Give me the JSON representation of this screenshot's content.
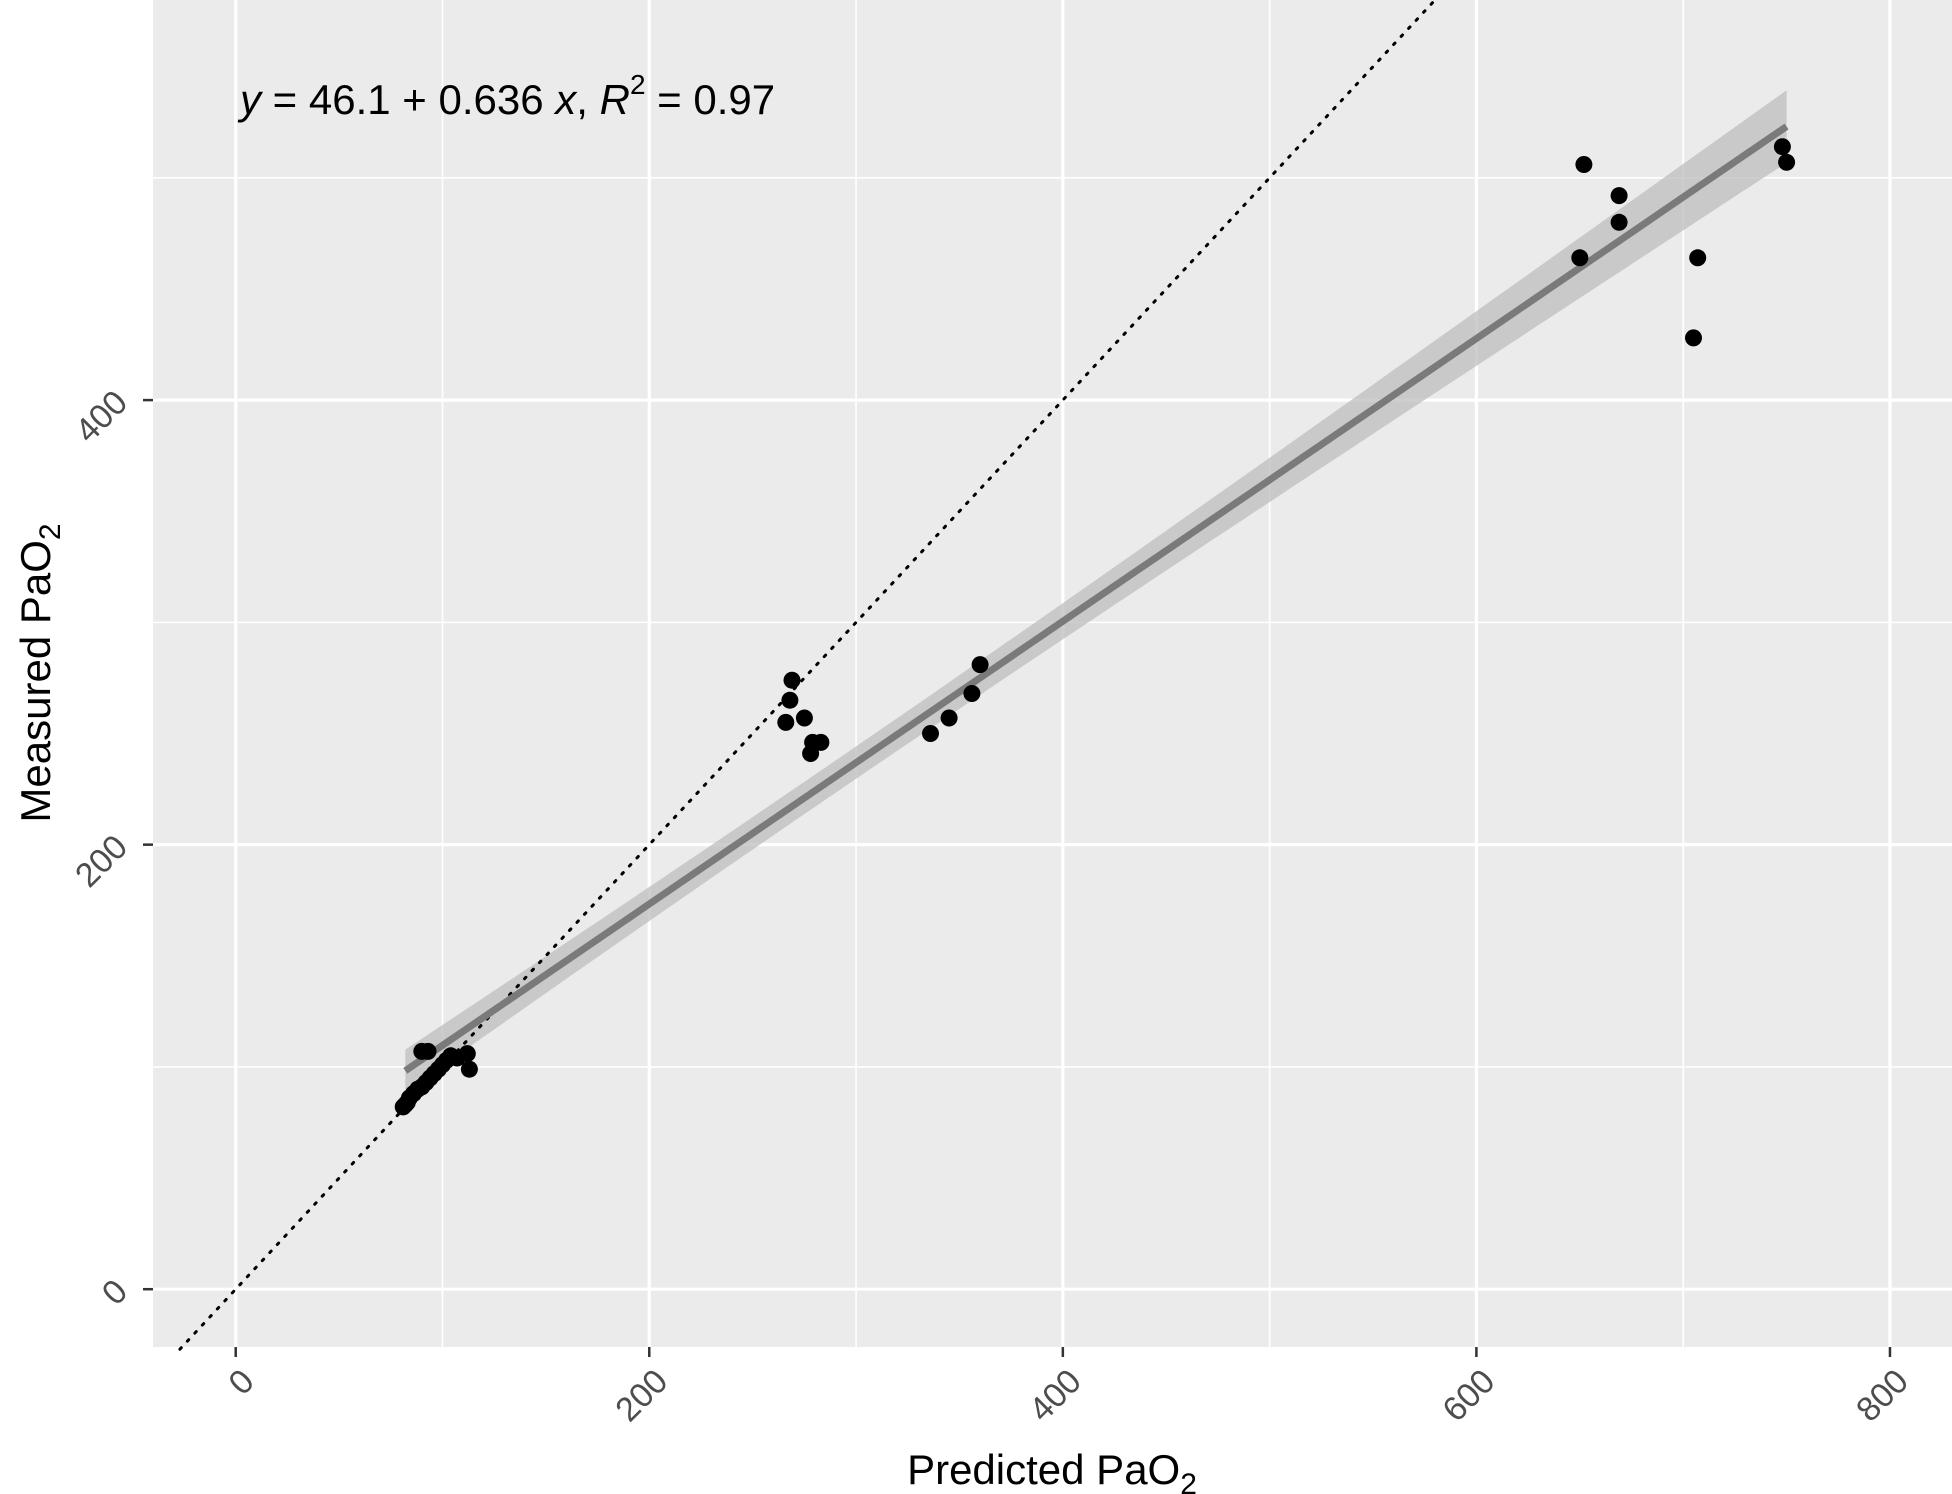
{
  "chart_data": {
    "type": "scatter",
    "title": "",
    "xlabel": "Predicted PaO",
    "xlabel_sub": "2",
    "ylabel": "Measured PaO",
    "ylabel_sub": "2",
    "xlim": [
      -40,
      830
    ],
    "ylim": [
      -26,
      580
    ],
    "x_ticks": [
      0,
      200,
      400,
      600,
      800
    ],
    "y_ticks": [
      0,
      200,
      400
    ],
    "x_tick_labels": [
      "0",
      "200",
      "400",
      "600",
      "800"
    ],
    "y_tick_labels": [
      "0",
      "200",
      "400"
    ],
    "grid": true,
    "annotation": {
      "y_var": "y",
      "eq_mid": " = 46.1 + 0.636 ",
      "x_var": "x",
      "sep": ", ",
      "r_var": "R",
      "r_sup": "2",
      "r_val": " = 0.97"
    },
    "identity_line": {
      "slope": 1,
      "intercept": 0,
      "style": "dotted"
    },
    "regression": {
      "intercept": 46.1,
      "slope": 0.636,
      "x_range": [
        82,
        750
      ],
      "color": "#7a7a7a",
      "band_color": "#bdbdbd"
    },
    "points": [
      {
        "x": 81,
        "y": 82
      },
      {
        "x": 82,
        "y": 83
      },
      {
        "x": 83,
        "y": 84
      },
      {
        "x": 84,
        "y": 86
      },
      {
        "x": 86,
        "y": 88
      },
      {
        "x": 88,
        "y": 90
      },
      {
        "x": 90,
        "y": 91
      },
      {
        "x": 92,
        "y": 93
      },
      {
        "x": 94,
        "y": 95
      },
      {
        "x": 96,
        "y": 97
      },
      {
        "x": 98,
        "y": 99
      },
      {
        "x": 100,
        "y": 101
      },
      {
        "x": 102,
        "y": 103
      },
      {
        "x": 104,
        "y": 105
      },
      {
        "x": 107,
        "y": 104
      },
      {
        "x": 112,
        "y": 106
      },
      {
        "x": 113,
        "y": 99
      },
      {
        "x": 90,
        "y": 107
      },
      {
        "x": 93,
        "y": 107
      },
      {
        "x": 269,
        "y": 274
      },
      {
        "x": 268,
        "y": 265
      },
      {
        "x": 266,
        "y": 255
      },
      {
        "x": 275,
        "y": 257
      },
      {
        "x": 279,
        "y": 246
      },
      {
        "x": 283,
        "y": 246
      },
      {
        "x": 278,
        "y": 241
      },
      {
        "x": 336,
        "y": 250
      },
      {
        "x": 345,
        "y": 257
      },
      {
        "x": 356,
        "y": 268
      },
      {
        "x": 360,
        "y": 281
      },
      {
        "x": 652,
        "y": 506
      },
      {
        "x": 669,
        "y": 492
      },
      {
        "x": 669,
        "y": 480
      },
      {
        "x": 650,
        "y": 464
      },
      {
        "x": 707,
        "y": 464
      },
      {
        "x": 705,
        "y": 428
      },
      {
        "x": 748,
        "y": 514
      },
      {
        "x": 750,
        "y": 507
      }
    ],
    "colors": {
      "panel": "#ebebeb",
      "grid": "#ffffff",
      "point": "#000000",
      "tick": "#333333"
    }
  }
}
